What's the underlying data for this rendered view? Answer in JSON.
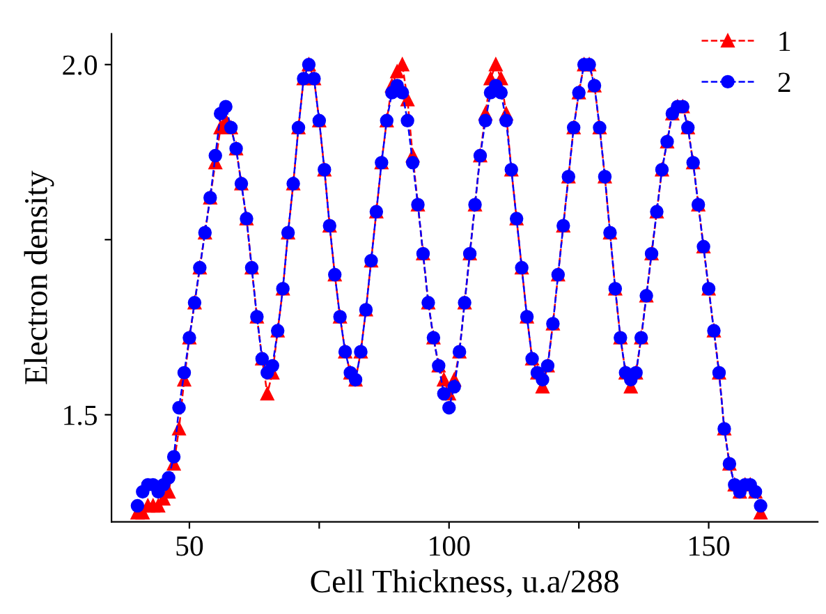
{
  "chart_data": {
    "type": "line",
    "xlabel": "Cell Thickness, u.a/288",
    "ylabel": "Electron density",
    "xlim": [
      35,
      171
    ],
    "ylim": [
      1.347,
      2.044
    ],
    "xticks": [
      50,
      {
        "value": 75,
        "label": null
      },
      100,
      {
        "value": 125,
        "label": null
      },
      150
    ],
    "yticks": [
      1.5,
      {
        "value": 1.75,
        "label": null
      },
      {
        "value": 2.0,
        "label": "2.0"
      }
    ],
    "grid": false,
    "legend": "top right",
    "line_style": "dashed",
    "x": [
      40,
      41,
      42,
      43,
      44,
      45,
      46,
      47,
      48,
      49,
      50,
      51,
      52,
      53,
      54,
      55,
      56,
      57,
      58,
      59,
      60,
      61,
      62,
      63,
      64,
      65,
      66,
      67,
      68,
      69,
      70,
      71,
      72,
      73,
      74,
      75,
      76,
      77,
      78,
      79,
      80,
      81,
      82,
      83,
      84,
      85,
      86,
      87,
      88,
      89,
      90,
      91,
      92,
      93,
      94,
      95,
      96,
      97,
      98,
      99,
      100,
      101,
      102,
      103,
      104,
      105,
      106,
      107,
      108,
      109,
      110,
      111,
      112,
      113,
      114,
      115,
      116,
      117,
      118,
      119,
      120,
      121,
      122,
      123,
      124,
      125,
      126,
      127,
      128,
      129,
      130,
      131,
      132,
      133,
      134,
      135,
      136,
      137,
      138,
      139,
      140,
      141,
      142,
      143,
      144,
      145,
      146,
      147,
      148,
      149,
      150,
      151,
      152,
      153,
      154,
      155,
      156,
      157,
      158,
      159,
      160
    ],
    "series": [
      {
        "name": "1",
        "color": "#ff0000",
        "marker": "triangle",
        "values": [
          1.36,
          1.36,
          1.37,
          1.37,
          1.37,
          1.38,
          1.39,
          1.43,
          1.48,
          1.55,
          1.61,
          1.66,
          1.71,
          1.76,
          1.81,
          1.86,
          1.91,
          1.92,
          1.91,
          1.88,
          1.83,
          1.78,
          1.71,
          1.64,
          1.58,
          1.53,
          1.56,
          1.62,
          1.68,
          1.76,
          1.83,
          1.91,
          1.98,
          2.0,
          1.98,
          1.92,
          1.85,
          1.77,
          1.7,
          1.64,
          1.59,
          1.56,
          1.55,
          1.59,
          1.65,
          1.72,
          1.79,
          1.86,
          1.92,
          1.97,
          1.99,
          2.0,
          1.95,
          1.87,
          1.8,
          1.73,
          1.66,
          1.61,
          1.57,
          1.55,
          1.53,
          1.55,
          1.59,
          1.66,
          1.73,
          1.8,
          1.87,
          1.93,
          1.98,
          2.0,
          1.98,
          1.93,
          1.85,
          1.78,
          1.71,
          1.64,
          1.58,
          1.56,
          1.54,
          1.57,
          1.63,
          1.7,
          1.77,
          1.84,
          1.91,
          1.96,
          2.0,
          2.0,
          1.97,
          1.91,
          1.84,
          1.76,
          1.68,
          1.61,
          1.56,
          1.54,
          1.56,
          1.61,
          1.67,
          1.73,
          1.79,
          1.85,
          1.89,
          1.93,
          1.94,
          1.94,
          1.91,
          1.86,
          1.8,
          1.74,
          1.68,
          1.62,
          1.56,
          1.48,
          1.43,
          1.4,
          1.39,
          1.4,
          1.4,
          1.39,
          1.36
        ]
      },
      {
        "name": "2",
        "color": "#0000ff",
        "marker": "circle",
        "values": [
          1.37,
          1.39,
          1.4,
          1.4,
          1.39,
          1.4,
          1.41,
          1.44,
          1.51,
          1.56,
          1.61,
          1.66,
          1.71,
          1.76,
          1.81,
          1.87,
          1.93,
          1.94,
          1.91,
          1.88,
          1.83,
          1.78,
          1.71,
          1.64,
          1.58,
          1.56,
          1.57,
          1.62,
          1.68,
          1.76,
          1.83,
          1.91,
          1.98,
          2.0,
          1.98,
          1.92,
          1.85,
          1.77,
          1.7,
          1.64,
          1.59,
          1.56,
          1.55,
          1.59,
          1.65,
          1.72,
          1.79,
          1.86,
          1.92,
          1.96,
          1.97,
          1.96,
          1.92,
          1.86,
          1.8,
          1.73,
          1.66,
          1.61,
          1.57,
          1.53,
          1.51,
          1.54,
          1.59,
          1.66,
          1.73,
          1.8,
          1.87,
          1.92,
          1.96,
          1.97,
          1.96,
          1.92,
          1.85,
          1.78,
          1.71,
          1.64,
          1.58,
          1.56,
          1.55,
          1.57,
          1.63,
          1.7,
          1.77,
          1.84,
          1.91,
          1.96,
          2.0,
          2.0,
          1.97,
          1.91,
          1.84,
          1.76,
          1.68,
          1.61,
          1.56,
          1.55,
          1.56,
          1.61,
          1.67,
          1.73,
          1.79,
          1.85,
          1.89,
          1.93,
          1.94,
          1.94,
          1.91,
          1.86,
          1.8,
          1.74,
          1.68,
          1.62,
          1.56,
          1.48,
          1.43,
          1.4,
          1.39,
          1.4,
          1.4,
          1.39,
          1.37
        ]
      }
    ]
  }
}
